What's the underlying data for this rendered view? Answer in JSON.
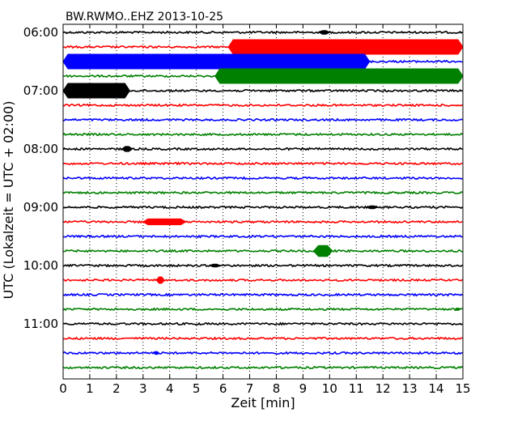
{
  "chart_data": {
    "type": "line",
    "title": "BW.RWMO..EHZ 2013-10-25",
    "xlabel": "Zeit  [min]",
    "ylabel": "UTC (Lokalzeit = UTC + 02:00)",
    "xlim": [
      0,
      15
    ],
    "x_ticks": [
      "0",
      "1",
      "2",
      "3",
      "4",
      "5",
      "6",
      "7",
      "8",
      "9",
      "10",
      "11",
      "12",
      "13",
      "14",
      "15"
    ],
    "y_ticks": [
      "06:00",
      "07:00",
      "08:00",
      "09:00",
      "10:00",
      "11:00"
    ],
    "grid": "vertical dotted",
    "trace_colors": [
      "#000000",
      "#ff0000",
      "#0000ff",
      "#008000"
    ],
    "trace_minutes_per_line": 15,
    "traces": [
      {
        "start": "06:00",
        "color": "#000000",
        "events": [
          {
            "from": 9.6,
            "to": 10.0,
            "level": 0.25
          }
        ]
      },
      {
        "start": "06:15",
        "color": "#ff0000",
        "events": [
          {
            "from": 6.2,
            "to": 15.0,
            "level": 1.0
          }
        ]
      },
      {
        "start": "06:30",
        "color": "#0000ff",
        "events": [
          {
            "from": 0.0,
            "to": 11.5,
            "level": 1.0
          }
        ]
      },
      {
        "start": "06:45",
        "color": "#008000",
        "events": [
          {
            "from": 5.7,
            "to": 15.0,
            "level": 1.0
          }
        ]
      },
      {
        "start": "07:00",
        "color": "#000000",
        "events": [
          {
            "from": 0.0,
            "to": 2.5,
            "level": 1.0
          }
        ]
      },
      {
        "start": "07:15",
        "color": "#ff0000",
        "events": []
      },
      {
        "start": "07:30",
        "color": "#0000ff",
        "events": []
      },
      {
        "start": "07:45",
        "color": "#008000",
        "events": []
      },
      {
        "start": "08:00",
        "color": "#000000",
        "events": [
          {
            "from": 2.2,
            "to": 2.6,
            "level": 0.35
          }
        ]
      },
      {
        "start": "08:15",
        "color": "#ff0000",
        "events": []
      },
      {
        "start": "08:30",
        "color": "#0000ff",
        "events": []
      },
      {
        "start": "08:45",
        "color": "#008000",
        "events": []
      },
      {
        "start": "09:00",
        "color": "#000000",
        "events": [
          {
            "from": 11.4,
            "to": 11.8,
            "level": 0.2
          }
        ]
      },
      {
        "start": "09:15",
        "color": "#ff0000",
        "events": [
          {
            "from": 3.0,
            "to": 4.6,
            "level": 0.4
          }
        ]
      },
      {
        "start": "09:30",
        "color": "#0000ff",
        "events": []
      },
      {
        "start": "09:45",
        "color": "#008000",
        "events": [
          {
            "from": 9.4,
            "to": 10.1,
            "level": 0.75
          }
        ]
      },
      {
        "start": "10:00",
        "color": "#000000",
        "events": [
          {
            "from": 5.5,
            "to": 5.9,
            "level": 0.2
          }
        ]
      },
      {
        "start": "10:15",
        "color": "#ff0000",
        "events": [
          {
            "from": 3.5,
            "to": 3.8,
            "level": 0.45
          }
        ]
      },
      {
        "start": "10:30",
        "color": "#0000ff",
        "events": []
      },
      {
        "start": "10:45",
        "color": "#008000",
        "events": [
          {
            "from": 14.7,
            "to": 14.9,
            "level": 0.15
          }
        ]
      },
      {
        "start": "11:00",
        "color": "#000000",
        "events": []
      },
      {
        "start": "11:15",
        "color": "#ff0000",
        "events": []
      },
      {
        "start": "11:30",
        "color": "#0000ff",
        "events": [
          {
            "from": 3.4,
            "to": 3.6,
            "level": 0.2
          }
        ]
      },
      {
        "start": "11:45",
        "color": "#008000",
        "events": []
      }
    ]
  }
}
